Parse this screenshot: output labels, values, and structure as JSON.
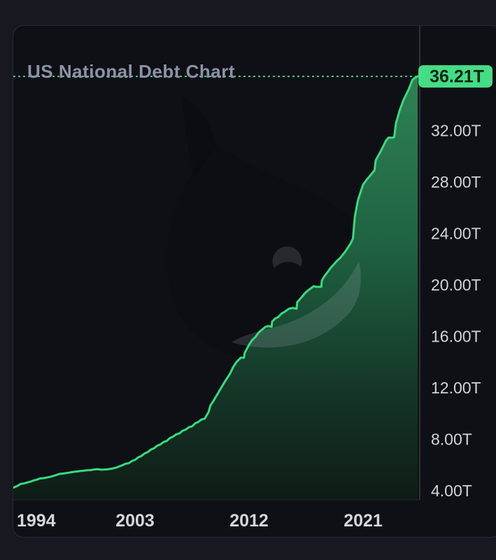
{
  "window": {
    "title": "US National Debt Chart"
  },
  "chart_data": {
    "type": "area",
    "title": "US National Debt Chart",
    "unit": "T (trillions USD)",
    "grid": false,
    "legend": false,
    "xlim": [
      1993.4,
      2025.4
    ],
    "ylim": [
      3.3,
      40.1
    ],
    "x_axis": {
      "ticks": [
        {
          "label": "1994",
          "year": 1994
        },
        {
          "label": "2003",
          "year": 2003
        },
        {
          "label": "2012",
          "year": 2012
        },
        {
          "label": "2021",
          "year": 2021
        }
      ]
    },
    "y_axis": {
      "position": "right",
      "ticks": [
        {
          "label": "32.00T",
          "value": 32
        },
        {
          "label": "28.00T",
          "value": 28
        },
        {
          "label": "24.00T",
          "value": 24
        },
        {
          "label": "20.00T",
          "value": 20
        },
        {
          "label": "16.00T",
          "value": 16
        },
        {
          "label": "12.00T",
          "value": 12
        },
        {
          "label": "8.00T",
          "value": 8
        },
        {
          "label": "4.00T",
          "value": 4
        }
      ]
    },
    "current": {
      "label": "36.21T",
      "value": 36.21,
      "year": 2025.32
    },
    "series": [
      {
        "name": "US National Debt",
        "points": [
          [
            1993.4,
            4.24
          ],
          [
            1994,
            4.54
          ],
          [
            1994.5,
            4.64
          ],
          [
            1995,
            4.8
          ],
          [
            1995.5,
            4.95
          ],
          [
            1996,
            5.02
          ],
          [
            1996.5,
            5.13
          ],
          [
            1997,
            5.3
          ],
          [
            1997.5,
            5.36
          ],
          [
            1998,
            5.44
          ],
          [
            1998.5,
            5.5
          ],
          [
            1999,
            5.56
          ],
          [
            1999.5,
            5.6
          ],
          [
            2000,
            5.67
          ],
          [
            2000.4,
            5.63
          ],
          [
            2000.8,
            5.66
          ],
          [
            2001.2,
            5.72
          ],
          [
            2001.6,
            5.83
          ],
          [
            2002,
            5.98
          ],
          [
            2002.5,
            6.14
          ],
          [
            2003,
            6.4
          ],
          [
            2003.5,
            6.7
          ],
          [
            2004,
            7.0
          ],
          [
            2004.5,
            7.3
          ],
          [
            2005,
            7.6
          ],
          [
            2005.5,
            7.87
          ],
          [
            2006,
            8.2
          ],
          [
            2006.5,
            8.45
          ],
          [
            2007,
            8.75
          ],
          [
            2007.5,
            9.0
          ],
          [
            2008,
            9.35
          ],
          [
            2008.5,
            9.6
          ],
          [
            2008.8,
            10.1
          ],
          [
            2008.95,
            10.63
          ],
          [
            2009.2,
            11.0
          ],
          [
            2009.5,
            11.5
          ],
          [
            2009.8,
            12.0
          ],
          [
            2010.1,
            12.5
          ],
          [
            2010.5,
            13.1
          ],
          [
            2011,
            14.0
          ],
          [
            2011.35,
            14.34
          ],
          [
            2011.6,
            14.34
          ],
          [
            2011.65,
            14.7
          ],
          [
            2012,
            15.35
          ],
          [
            2012.5,
            15.95
          ],
          [
            2013,
            16.5
          ],
          [
            2013.3,
            16.74
          ],
          [
            2013.78,
            16.74
          ],
          [
            2013.82,
            17.15
          ],
          [
            2014.3,
            17.5
          ],
          [
            2014.8,
            17.9
          ],
          [
            2015.15,
            18.15
          ],
          [
            2015.75,
            18.15
          ],
          [
            2015.8,
            18.65
          ],
          [
            2016.2,
            19.1
          ],
          [
            2016.7,
            19.6
          ],
          [
            2017.1,
            19.9
          ],
          [
            2017.3,
            19.85
          ],
          [
            2017.7,
            19.85
          ],
          [
            2017.75,
            20.35
          ],
          [
            2018.2,
            21.0
          ],
          [
            2018.7,
            21.6
          ],
          [
            2019.2,
            22.1
          ],
          [
            2019.6,
            22.6
          ],
          [
            2020.0,
            23.2
          ],
          [
            2020.2,
            23.6
          ],
          [
            2020.35,
            25.3
          ],
          [
            2020.6,
            26.6
          ],
          [
            2021.0,
            27.8
          ],
          [
            2021.3,
            28.2
          ],
          [
            2021.5,
            28.43
          ],
          [
            2021.9,
            28.9
          ],
          [
            2022.0,
            29.7
          ],
          [
            2022.4,
            30.4
          ],
          [
            2022.8,
            31.2
          ],
          [
            2023.0,
            31.45
          ],
          [
            2023.45,
            31.47
          ],
          [
            2023.6,
            32.6
          ],
          [
            2023.9,
            33.6
          ],
          [
            2024.2,
            34.4
          ],
          [
            2024.6,
            35.2
          ],
          [
            2024.9,
            35.95
          ],
          [
            2025.1,
            36.1
          ],
          [
            2025.32,
            36.21
          ]
        ]
      }
    ]
  },
  "watermark": {
    "name": "whale-logo"
  },
  "colors": {
    "page_bg": "#171820",
    "panel_bg": "#0f1016",
    "panel_border": "#282a34",
    "title": "#8d92a4",
    "axis_label": "#d2d3d9",
    "axis_line": "#2e303a",
    "plot_baseline": "#242630",
    "line": "#38db7e",
    "dotted_line": "#3ed07f",
    "badge_bg": "#45dd85",
    "badge_text": "#0c2316",
    "area_top": "#2e8254",
    "area_mid": "#1f6242",
    "area_low": "#143526",
    "area_bottom": "#0e1c16"
  }
}
